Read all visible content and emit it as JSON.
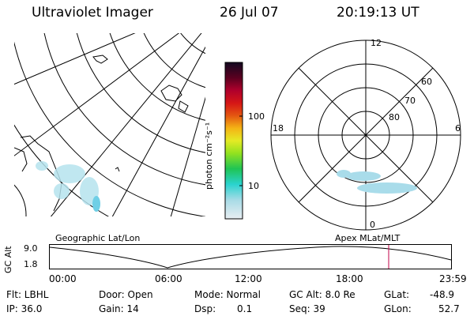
{
  "header": {
    "title": "Ultraviolet Imager",
    "date": "26 Jul 07",
    "time": "20:19:13 UT"
  },
  "colorbar": {
    "unit_label": "photon cm⁻²s⁻¹",
    "ticks": [
      "100",
      "10"
    ]
  },
  "geo_map": {
    "label": "Geographic Lat/Lon"
  },
  "polar_map": {
    "label": "Apex MLat/MLT",
    "mlt_labels": {
      "top": "12",
      "left": "18",
      "right": "6",
      "bottom": "0"
    },
    "mlat_labels": [
      "60",
      "70",
      "80"
    ]
  },
  "altitude_plot": {
    "ylabel": "GC Alt",
    "y_top": "9.0",
    "y_bottom": "1.8",
    "x_ticks": [
      "00:00",
      "06:00",
      "12:00",
      "18:00",
      "23:59"
    ]
  },
  "info": {
    "flt": "Flt: LBHL",
    "ip": "IP: 36.0",
    "door": "Door: Open",
    "gain": "Gain: 14",
    "mode": "Mode: Normal",
    "dsp_label": "Dsp:",
    "dsp_value": "0.1",
    "gc_alt": "GC Alt: 8.0 Re",
    "seq": "Seq: 39",
    "glat_label": "GLat:",
    "glat_value": "-48.9",
    "glon_label": "GLon:",
    "glon_value": "52.7"
  },
  "colors": {
    "marker_line": "#c0004a",
    "aurora": "#9fd8e8"
  }
}
